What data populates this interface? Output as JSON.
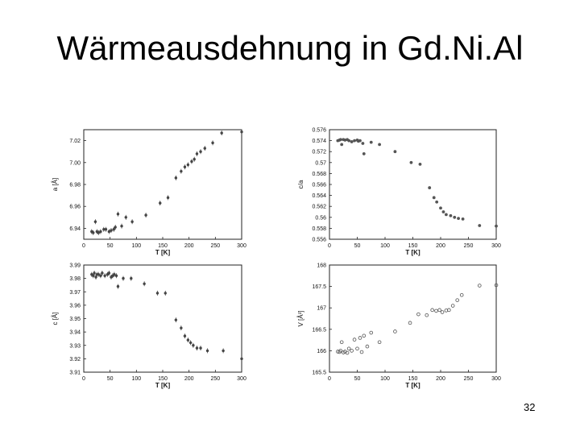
{
  "slide": {
    "title": "Wärmeausdehnung in Gd.Ni.Al",
    "page_number": "32"
  },
  "chart_data": [
    {
      "type": "scatter",
      "xlabel": "T [K]",
      "ylabel": "a [Å]",
      "xlim": [
        0,
        300
      ],
      "ylim": [
        6.93,
        7.03
      ],
      "x_ticks": [
        0,
        50,
        100,
        150,
        200,
        250,
        300
      ],
      "y_ticks": [
        6.94,
        6.96,
        6.98,
        7.0,
        7.02
      ],
      "x_tick_labels": [
        "0",
        "50",
        "100",
        "150",
        "200",
        "250",
        "300"
      ],
      "y_tick_labels": [
        "6.94",
        "6.96",
        "6.98",
        "7.00",
        "7.02"
      ],
      "grid": false,
      "marker": "filled-errorbar",
      "points": [
        [
          15,
          6.937
        ],
        [
          18,
          6.936
        ],
        [
          22,
          6.946
        ],
        [
          25,
          6.937
        ],
        [
          28,
          6.936
        ],
        [
          32,
          6.937
        ],
        [
          38,
          6.939
        ],
        [
          42,
          6.939
        ],
        [
          48,
          6.937
        ],
        [
          52,
          6.938
        ],
        [
          57,
          6.939
        ],
        [
          60,
          6.941
        ],
        [
          65,
          6.953
        ],
        [
          72,
          6.942
        ],
        [
          80,
          6.95
        ],
        [
          92,
          6.946
        ],
        [
          118,
          6.952
        ],
        [
          145,
          6.963
        ],
        [
          160,
          6.968
        ],
        [
          175,
          6.986
        ],
        [
          185,
          6.992
        ],
        [
          192,
          6.996
        ],
        [
          198,
          6.998
        ],
        [
          205,
          7.001
        ],
        [
          210,
          7.003
        ],
        [
          215,
          7.008
        ],
        [
          222,
          7.01
        ],
        [
          230,
          7.013
        ],
        [
          245,
          7.018
        ],
        [
          262,
          7.027
        ],
        [
          300,
          7.028
        ]
      ]
    },
    {
      "type": "scatter",
      "xlabel": "T [K]",
      "ylabel": "c/a",
      "xlim": [
        0,
        300
      ],
      "ylim": [
        0.556,
        0.576
      ],
      "x_ticks": [
        0,
        50,
        100,
        150,
        200,
        250,
        300
      ],
      "y_ticks": [
        0.556,
        0.558,
        0.56,
        0.562,
        0.564,
        0.566,
        0.568,
        0.57,
        0.572,
        0.574,
        0.576
      ],
      "x_tick_labels": [
        "0",
        "50",
        "100",
        "150",
        "200",
        "250",
        "300"
      ],
      "y_tick_labels": [
        "0.556",
        "0.558",
        "0.56",
        "0.562",
        "0.564",
        "0.566",
        "0.568",
        "0.57",
        "0.572",
        "0.574",
        "0.576"
      ],
      "grid": false,
      "marker": "filled",
      "points": [
        [
          15,
          0.574
        ],
        [
          18,
          0.5741
        ],
        [
          20,
          0.5742
        ],
        [
          22,
          0.5733
        ],
        [
          25,
          0.5742
        ],
        [
          28,
          0.5741
        ],
        [
          32,
          0.5742
        ],
        [
          35,
          0.574
        ],
        [
          40,
          0.5738
        ],
        [
          45,
          0.574
        ],
        [
          50,
          0.5741
        ],
        [
          52,
          0.5739
        ],
        [
          55,
          0.574
        ],
        [
          60,
          0.5735
        ],
        [
          62,
          0.5716
        ],
        [
          75,
          0.5737
        ],
        [
          90,
          0.5733
        ],
        [
          118,
          0.572
        ],
        [
          147,
          0.57
        ],
        [
          163,
          0.5697
        ],
        [
          180,
          0.5654
        ],
        [
          188,
          0.5636
        ],
        [
          193,
          0.5628
        ],
        [
          200,
          0.5617
        ],
        [
          205,
          0.561
        ],
        [
          210,
          0.5605
        ],
        [
          218,
          0.5603
        ],
        [
          225,
          0.56
        ],
        [
          232,
          0.5598
        ],
        [
          240,
          0.5597
        ],
        [
          270,
          0.5585
        ],
        [
          300,
          0.5584
        ]
      ]
    },
    {
      "type": "scatter",
      "xlabel": "T [K]",
      "ylabel": "c [Å]",
      "xlim": [
        0,
        300
      ],
      "ylim": [
        3.91,
        3.99
      ],
      "x_ticks": [
        0,
        50,
        100,
        150,
        200,
        250,
        300
      ],
      "y_ticks": [
        3.91,
        3.92,
        3.93,
        3.94,
        3.95,
        3.96,
        3.97,
        3.98,
        3.99
      ],
      "x_tick_labels": [
        "0",
        "50",
        "100",
        "150",
        "200",
        "250",
        "300"
      ],
      "y_tick_labels": [
        "3.91",
        "3.92",
        "3.93",
        "3.94",
        "3.95",
        "3.96",
        "3.97",
        "3.98",
        "3.99"
      ],
      "grid": false,
      "marker": "filled-errorbar",
      "points": [
        [
          15,
          3.983
        ],
        [
          18,
          3.982
        ],
        [
          20,
          3.984
        ],
        [
          23,
          3.981
        ],
        [
          25,
          3.983
        ],
        [
          28,
          3.983
        ],
        [
          32,
          3.982
        ],
        [
          35,
          3.984
        ],
        [
          40,
          3.982
        ],
        [
          45,
          3.983
        ],
        [
          48,
          3.984
        ],
        [
          52,
          3.981
        ],
        [
          55,
          3.982
        ],
        [
          58,
          3.983
        ],
        [
          62,
          3.982
        ],
        [
          65,
          3.974
        ],
        [
          75,
          3.98
        ],
        [
          90,
          3.98
        ],
        [
          115,
          3.976
        ],
        [
          140,
          3.969
        ],
        [
          155,
          3.969
        ],
        [
          175,
          3.949
        ],
        [
          185,
          3.943
        ],
        [
          192,
          3.937
        ],
        [
          198,
          3.934
        ],
        [
          203,
          3.932
        ],
        [
          208,
          3.93
        ],
        [
          215,
          3.928
        ],
        [
          222,
          3.928
        ],
        [
          235,
          3.926
        ],
        [
          265,
          3.926
        ],
        [
          300,
          3.92
        ]
      ]
    },
    {
      "type": "scatter",
      "xlabel": "T [K]",
      "ylabel": "V [Å³]",
      "xlim": [
        0,
        300
      ],
      "ylim": [
        165.5,
        168
      ],
      "x_ticks": [
        0,
        50,
        100,
        150,
        200,
        250,
        300
      ],
      "y_ticks": [
        165.5,
        166,
        166.5,
        167,
        167.5,
        168
      ],
      "x_tick_labels": [
        "0",
        "50",
        "100",
        "150",
        "200",
        "250",
        "300"
      ],
      "y_tick_labels": [
        "165.5",
        "166",
        "166.5",
        "167",
        "167.5",
        "168"
      ],
      "grid": false,
      "marker": "open",
      "points": [
        [
          15,
          165.98
        ],
        [
          18,
          165.97
        ],
        [
          20,
          166.0
        ],
        [
          22,
          166.2
        ],
        [
          25,
          165.96
        ],
        [
          28,
          165.98
        ],
        [
          32,
          165.95
        ],
        [
          35,
          166.05
        ],
        [
          40,
          166.0
        ],
        [
          45,
          166.26
        ],
        [
          50,
          166.05
        ],
        [
          55,
          166.3
        ],
        [
          58,
          165.97
        ],
        [
          62,
          166.35
        ],
        [
          68,
          166.1
        ],
        [
          75,
          166.42
        ],
        [
          90,
          166.2
        ],
        [
          118,
          166.45
        ],
        [
          145,
          166.65
        ],
        [
          160,
          166.85
        ],
        [
          175,
          166.83
        ],
        [
          185,
          166.95
        ],
        [
          192,
          166.93
        ],
        [
          198,
          166.95
        ],
        [
          203,
          166.9
        ],
        [
          210,
          166.94
        ],
        [
          215,
          166.95
        ],
        [
          222,
          167.05
        ],
        [
          230,
          167.18
        ],
        [
          238,
          167.3
        ],
        [
          270,
          167.52
        ],
        [
          300,
          167.53
        ]
      ]
    }
  ]
}
